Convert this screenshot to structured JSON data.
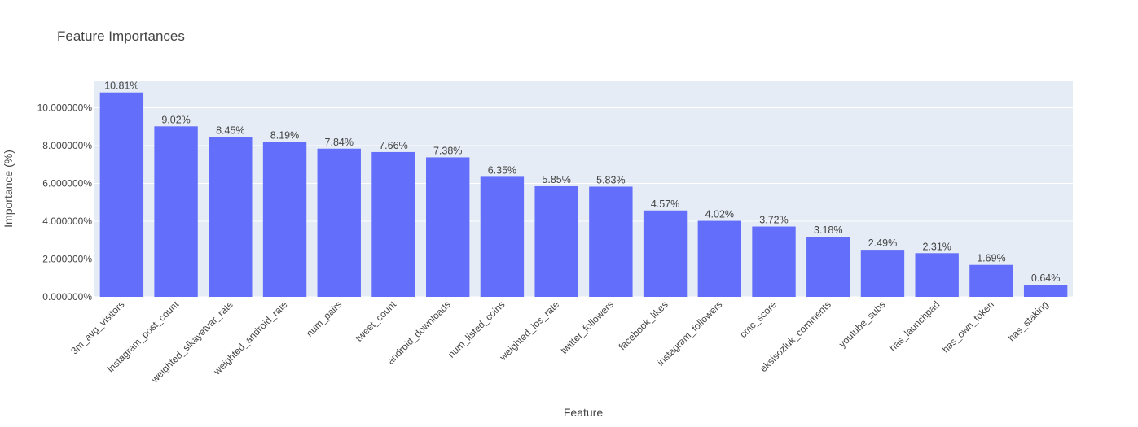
{
  "chart_data": {
    "type": "bar",
    "title": "Feature Importances",
    "xlabel": "Feature",
    "ylabel": "Importance (%)",
    "categories": [
      "3m_avg_visitors",
      "instagram_post_count",
      "weighted_sikayetvar_rate",
      "weighted_android_rate",
      "num_pairs",
      "tweet_count",
      "android_downloads",
      "num_listed_coins",
      "weighted_ios_rate",
      "twitter_followers",
      "facebook_likes",
      "instagram_followers",
      "cmc_score",
      "eksisozluk_comments",
      "youtube_subs",
      "has_launchpad",
      "has_own_token",
      "has_staking"
    ],
    "values": [
      10.81,
      9.02,
      8.45,
      8.19,
      7.84,
      7.66,
      7.38,
      6.35,
      5.85,
      5.83,
      4.57,
      4.02,
      3.72,
      3.18,
      2.49,
      2.31,
      1.69,
      0.64
    ],
    "data_labels": [
      "10.81%",
      "9.02%",
      "8.45%",
      "8.19%",
      "7.84%",
      "7.66%",
      "7.38%",
      "6.35%",
      "5.85%",
      "5.83%",
      "4.57%",
      "4.02%",
      "3.72%",
      "3.18%",
      "2.49%",
      "2.31%",
      "1.69%",
      "0.64%"
    ],
    "y_ticks": [
      0,
      2,
      4,
      6,
      8,
      10
    ],
    "y_tick_labels": [
      "0.000000%",
      "2.000000%",
      "4.000000%",
      "6.000000%",
      "8.000000%",
      "10.000000%"
    ],
    "ylim": [
      0,
      11.4
    ],
    "grid": true,
    "colors": {
      "bar": "#636efa",
      "plot_bg": "#e5ecf6",
      "grid": "#ffffff"
    }
  }
}
